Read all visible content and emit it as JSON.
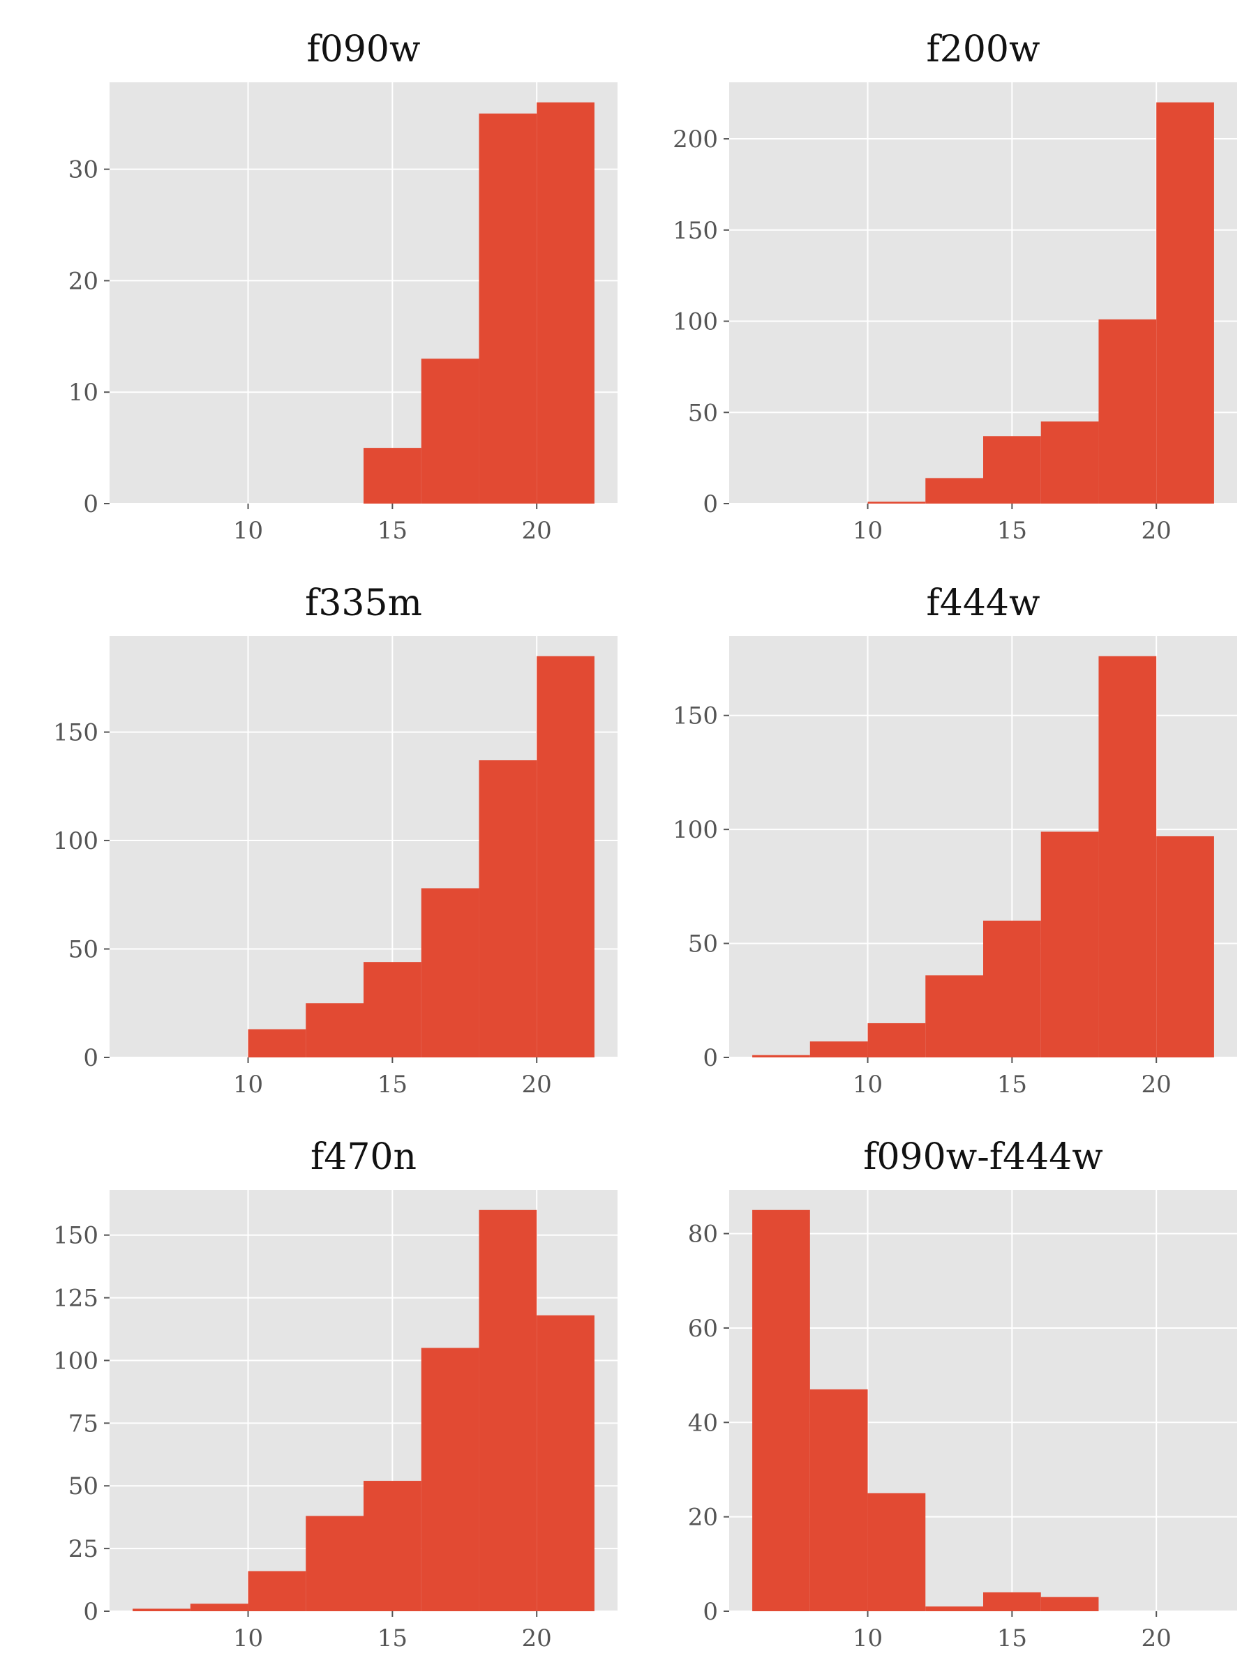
{
  "colors": {
    "bar": "#e24a33",
    "panel_background": "#e5e5e5",
    "grid": "#ffffff",
    "tick_text": "#555555",
    "title_text": "#111111"
  },
  "chart_data": [
    {
      "type": "bar",
      "title": "f090w",
      "xlabel": "",
      "ylabel": "",
      "bin_edges": [
        6,
        8,
        10,
        12,
        14,
        16,
        18,
        20,
        22
      ],
      "values": [
        0,
        0,
        0,
        0,
        5,
        13,
        35,
        36
      ],
      "xlim": [
        5.2,
        22.8
      ],
      "ylim": [
        0,
        37.8
      ],
      "xticks": [
        10,
        15,
        20
      ],
      "yticks": [
        0,
        10,
        20,
        30
      ],
      "grid": true,
      "legend": "none"
    },
    {
      "type": "bar",
      "title": "f200w",
      "xlabel": "",
      "ylabel": "",
      "bin_edges": [
        6,
        8,
        10,
        12,
        14,
        16,
        18,
        20,
        22
      ],
      "values": [
        0,
        0,
        1,
        14,
        37,
        45,
        101,
        220
      ],
      "xlim": [
        5.2,
        22.8
      ],
      "ylim": [
        0,
        231
      ],
      "xticks": [
        10,
        15,
        20
      ],
      "yticks": [
        0,
        50,
        100,
        150,
        200
      ],
      "grid": true,
      "legend": "none"
    },
    {
      "type": "bar",
      "title": "f335m",
      "xlabel": "",
      "ylabel": "",
      "bin_edges": [
        6,
        8,
        10,
        12,
        14,
        16,
        18,
        20,
        22
      ],
      "values": [
        0,
        0,
        13,
        25,
        44,
        78,
        137,
        185
      ],
      "xlim": [
        5.2,
        22.8
      ],
      "ylim": [
        0,
        194.25
      ],
      "xticks": [
        10,
        15,
        20
      ],
      "yticks": [
        0,
        50,
        100,
        150
      ],
      "grid": true,
      "legend": "none"
    },
    {
      "type": "bar",
      "title": "f444w",
      "xlabel": "",
      "ylabel": "",
      "bin_edges": [
        6,
        8,
        10,
        12,
        14,
        16,
        18,
        20,
        22
      ],
      "values": [
        1,
        7,
        15,
        36,
        60,
        99,
        176,
        97
      ],
      "xlim": [
        5.2,
        22.8
      ],
      "ylim": [
        0,
        184.8
      ],
      "xticks": [
        10,
        15,
        20
      ],
      "yticks": [
        0,
        50,
        100,
        150
      ],
      "grid": true,
      "legend": "none"
    },
    {
      "type": "bar",
      "title": "f470n",
      "xlabel": "",
      "ylabel": "",
      "bin_edges": [
        6,
        8,
        10,
        12,
        14,
        16,
        18,
        20,
        22
      ],
      "values": [
        1,
        3,
        16,
        38,
        52,
        105,
        160,
        118
      ],
      "xlim": [
        5.2,
        22.8
      ],
      "ylim": [
        0,
        168
      ],
      "xticks": [
        10,
        15,
        20
      ],
      "yticks": [
        0,
        25,
        50,
        75,
        100,
        125,
        150
      ],
      "grid": true,
      "legend": "none"
    },
    {
      "type": "bar",
      "title": "f090w-f444w",
      "xlabel": "",
      "ylabel": "",
      "bin_edges": [
        6,
        8,
        10,
        12,
        14,
        16,
        18,
        20,
        22
      ],
      "values": [
        85,
        47,
        25,
        1,
        4,
        3,
        0,
        0
      ],
      "xlim": [
        5.2,
        22.8
      ],
      "ylim": [
        0,
        89.25
      ],
      "xticks": [
        10,
        15,
        20
      ],
      "yticks": [
        0,
        20,
        40,
        60,
        80
      ],
      "grid": true,
      "legend": "none"
    }
  ]
}
